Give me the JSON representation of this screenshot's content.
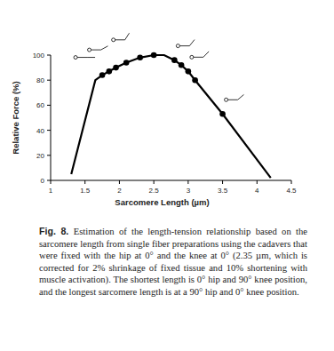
{
  "chart_data": {
    "type": "line",
    "x_label": "Sarcomere Length (µm)",
    "y_label": "Relative Force (%)",
    "caption_label": "Fig. 8.",
    "caption": "Estimation of the length-tension relationship based on the sarcomere length from single fiber preparations using the cadavers that were fixed with the hip at 0° and the knee at 0° (2.35 µm, which is corrected for 2% shrinkage of fixed tissue and 10% shortening with muscle activation). The shortest length is 0° hip and 90° knee position, and the longest sarcomere length is at a 90° hip and 0° knee position.",
    "xlim": [
      1,
      4.5
    ],
    "ylim": [
      0,
      100
    ],
    "xticks": [
      1,
      1.5,
      2,
      2.5,
      3,
      3.5,
      4,
      4.5
    ],
    "yticks": [
      0,
      20,
      40,
      60,
      80,
      100
    ],
    "grid": false,
    "series": [
      {
        "type": "line",
        "color": "#000000",
        "line_style": "solid",
        "marker": "none",
        "x": [
          1.3,
          1.65,
          1.75,
          1.85,
          1.95,
          2.1,
          2.3,
          2.5,
          2.65,
          2.8,
          2.9,
          3.0,
          3.1,
          3.5,
          4.2
        ],
        "values": [
          5,
          80,
          84,
          87,
          90,
          94,
          98,
          100,
          100,
          96,
          92,
          87,
          80,
          53,
          2
        ]
      },
      {
        "type": "scatter",
        "color": "#000000",
        "marker": "circle",
        "x": [
          1.75,
          1.85,
          1.95,
          2.1,
          2.3,
          2.5,
          2.8,
          2.9,
          3.0,
          3.1,
          3.5
        ],
        "values": [
          84,
          87,
          90,
          94,
          98,
          100,
          96,
          92,
          87,
          80,
          53
        ]
      }
    ]
  }
}
